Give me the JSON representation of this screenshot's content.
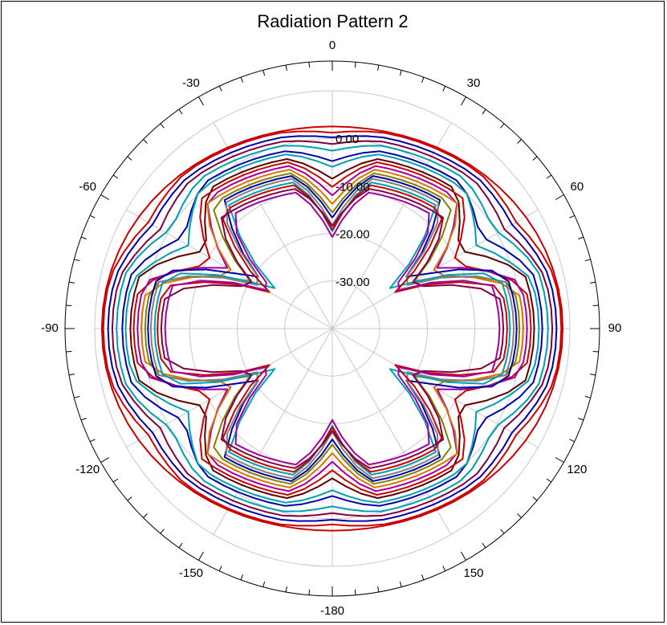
{
  "chart_data": {
    "type": "polar-line",
    "title": "Radiation Pattern 2",
    "angle_tick_labels": [
      "0",
      "30",
      "60",
      "90",
      "120",
      "150",
      "-180",
      "-150",
      "-120",
      "-90",
      "-60",
      "-30"
    ],
    "angle_tick_values": [
      0,
      30,
      60,
      90,
      120,
      150,
      180,
      -150,
      -120,
      -90,
      -60,
      -30
    ],
    "radial_tick_labels": [
      "0.00",
      "-10.00",
      "-20.00",
      "-30.00"
    ],
    "radial_tick_values": [
      0,
      -10,
      -20,
      -30
    ],
    "rlim": [
      -40,
      10
    ],
    "grid": true,
    "series_colors": [
      "#cc0000",
      "#0000aa",
      "#00a0b0",
      "#800040",
      "#808000",
      "#e07000",
      "#a000a0",
      "#808080",
      "#600000"
    ],
    "series": [
      {
        "color": "#cc0000",
        "offset": 8.5,
        "notch_depth": 0,
        "notch_angle": 0
      },
      {
        "color": "#cc0000",
        "offset": 8.2,
        "notch_depth": 2,
        "notch_angle": 60
      },
      {
        "color": "#0000aa",
        "offset": 7.2,
        "notch_depth": 2,
        "notch_angle": 60
      },
      {
        "color": "#800040",
        "offset": 6.3,
        "notch_depth": 3,
        "notch_angle": 60
      },
      {
        "color": "#00a0b0",
        "offset": 5.4,
        "notch_depth": 4,
        "notch_angle": 58
      },
      {
        "color": "#0000aa",
        "offset": 4.2,
        "notch_depth": 6,
        "notch_angle": 58
      },
      {
        "color": "#00a0b0",
        "offset": 3.5,
        "notch_depth": 7,
        "notch_angle": 60
      },
      {
        "color": "#600000",
        "offset": 2.5,
        "notch_depth": 10,
        "notch_angle": 58
      },
      {
        "color": "#cc0000",
        "offset": 1.8,
        "notch_depth": 12,
        "notch_angle": 62
      },
      {
        "color": "#a000a0",
        "offset": 1.0,
        "notch_depth": 14,
        "notch_angle": 60
      },
      {
        "color": "#e07000",
        "offset": 0.2,
        "notch_depth": 16,
        "notch_angle": 62
      },
      {
        "color": "#808000",
        "offset": -0.6,
        "notch_depth": 18,
        "notch_angle": 60
      },
      {
        "color": "#0000aa",
        "offset": -1.2,
        "notch_depth": 19,
        "notch_angle": 56
      },
      {
        "color": "#808080",
        "offset": -1.8,
        "notch_depth": 21,
        "notch_angle": 58
      },
      {
        "color": "#00a0b0",
        "offset": -2.6,
        "notch_depth": 22,
        "notch_angle": 56
      },
      {
        "color": "#cc0000",
        "offset": -3.2,
        "notch_depth": 20,
        "notch_angle": 60
      },
      {
        "color": "#800040",
        "offset": -4.0,
        "notch_depth": 17,
        "notch_angle": 62
      },
      {
        "color": "#a000a0",
        "offset": -4.8,
        "notch_depth": 20,
        "notch_angle": 58
      }
    ]
  }
}
